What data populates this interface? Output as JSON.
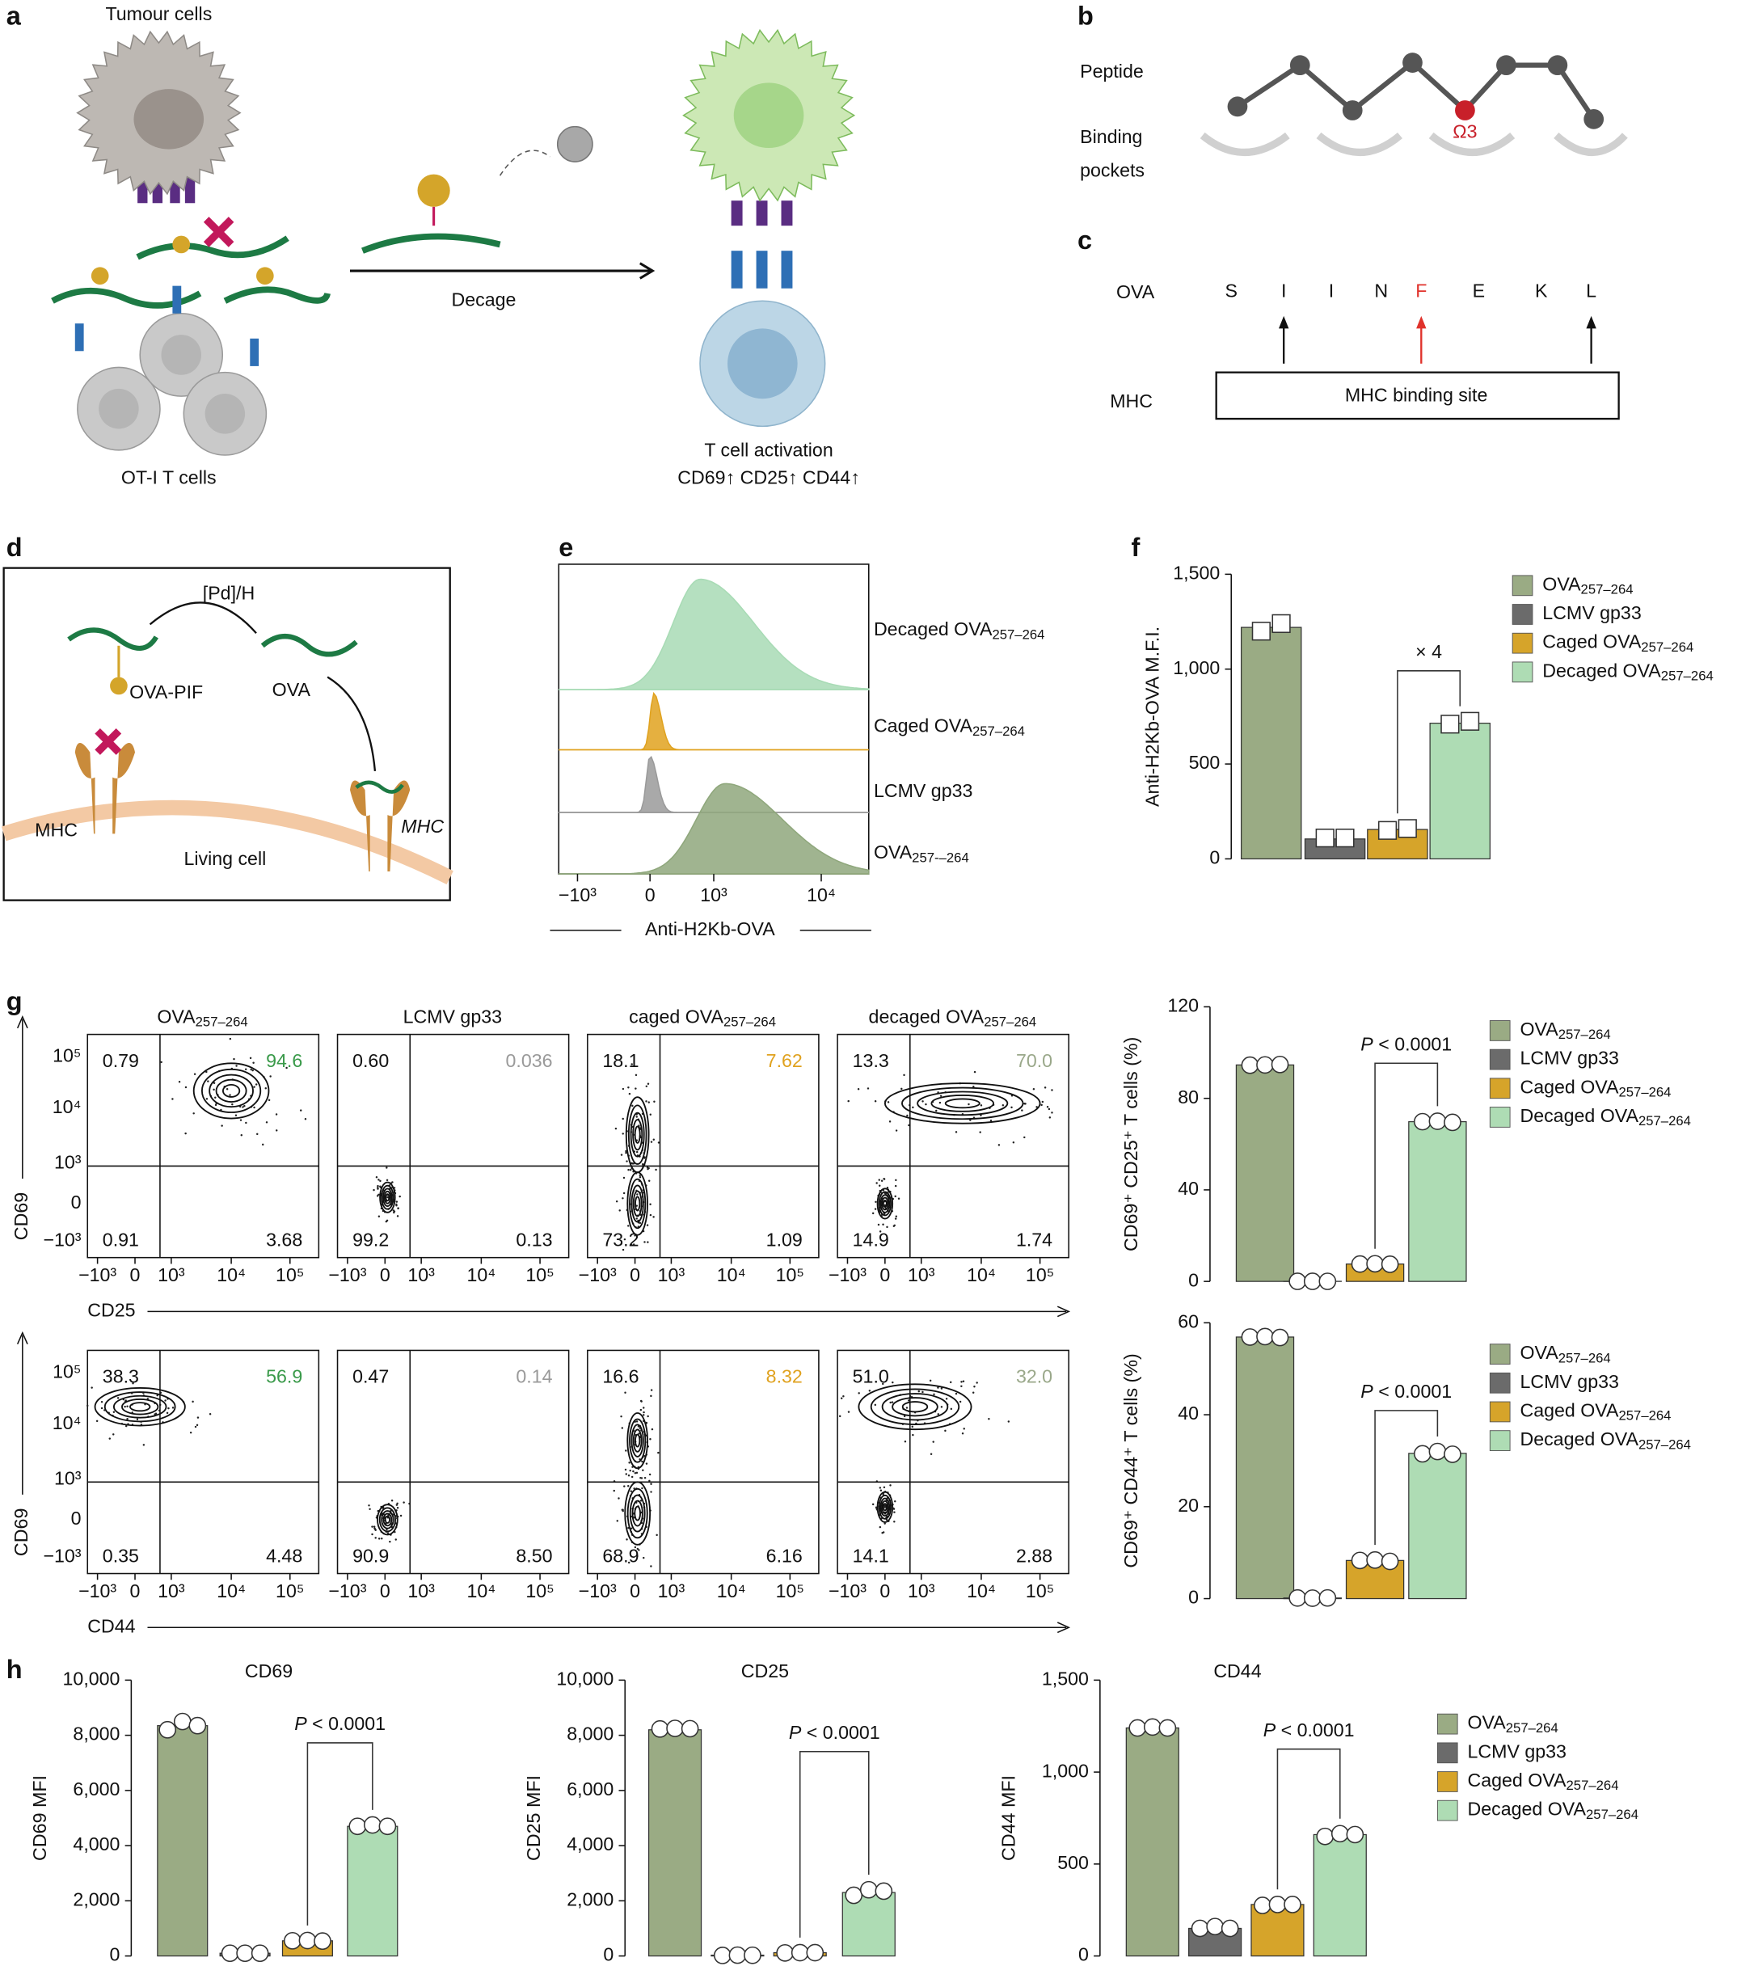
{
  "panel_labels": [
    "a",
    "b",
    "c",
    "d",
    "e",
    "f",
    "g",
    "h"
  ],
  "panel_a": {
    "tumour": "Tumour cells",
    "tcells": "OT-I T cells",
    "decage": "Decage",
    "activation": "T cell activation",
    "markers": "CD69↑ CD25↑ CD44↑"
  },
  "panel_b": {
    "peptide": "Peptide",
    "binding": [
      "Binding",
      "pockets"
    ],
    "pocket": "Ω3"
  },
  "panel_c": {
    "ova": "OVA",
    "sequence": [
      {
        "letter": "S",
        "color": "#111111"
      },
      {
        "letter": "I",
        "color": "#111111"
      },
      {
        "letter": "I",
        "color": "#111111"
      },
      {
        "letter": "N",
        "color": "#111111"
      },
      {
        "letter": "F",
        "color": "#e0322b"
      },
      {
        "letter": "E",
        "color": "#111111"
      },
      {
        "letter": "K",
        "color": "#111111"
      },
      {
        "letter": "L",
        "color": "#111111"
      }
    ],
    "mhc": "MHC",
    "site": "MHC binding site"
  },
  "panel_d": {
    "catalyst": "[Pd]/H",
    "caged": "OVA-PIF",
    "ova": "OVA",
    "mhc_left": "MHC",
    "mhc_right": "MHC",
    "cell": "Living cell"
  },
  "panel_e": {
    "rows": [
      {
        "name": "Decaged OVA",
        "sub": "257–264",
        "color": "#a8dbb5"
      },
      {
        "name": "Caged OVA",
        "sub": "257–264",
        "color": "#e0a21f"
      },
      {
        "name": "LCMV gp33",
        "color": "#9a9a9a"
      },
      {
        "name": "OVA",
        "sub": "257-–264",
        "color": "#8fa77c"
      }
    ],
    "xticks": [
      "−10³",
      "0",
      "10³",
      "10⁴"
    ],
    "xlabel": "Anti-H2Kb-OVA"
  },
  "flow": {
    "xticks": [
      "−10³",
      "0",
      "10³",
      "10⁴",
      "10⁵"
    ],
    "yticks": [
      "10⁵",
      "10⁴",
      "10³",
      "0",
      "−10³"
    ],
    "rows": [
      {
        "xlabel": "CD25",
        "ylabel": "CD69",
        "plots": [
          {
            "title": "OVA",
            "title_sub": "257–264",
            "quadrants": [
              "0.79",
              "94.6",
              "0.91",
              "3.68"
            ],
            "highlight_color": "#3a9a4a"
          },
          {
            "title": "LCMV gp33",
            "quadrants": [
              "0.60",
              "0.036",
              "99.2",
              "0.13"
            ],
            "highlight_color": "#9a9a9a"
          },
          {
            "title": "caged OVA",
            "title_sub": "257–264",
            "quadrants": [
              "18.1",
              "7.62",
              "73.2",
              "1.09"
            ],
            "highlight_color": "#e0a21f"
          },
          {
            "title": "decaged OVA",
            "title_sub": "257–264",
            "quadrants": [
              "13.3",
              "70.0",
              "14.9",
              "1.74"
            ],
            "highlight_color": "#9aa88a"
          }
        ]
      },
      {
        "xlabel": "CD44",
        "ylabel": "CD69",
        "plots": [
          {
            "quadrants": [
              "38.3",
              "56.9",
              "0.35",
              "4.48"
            ],
            "highlight_color": "#3a9a4a"
          },
          {
            "quadrants": [
              "0.47",
              "0.14",
              "90.9",
              "8.50"
            ],
            "highlight_color": "#9a9a9a"
          },
          {
            "quadrants": [
              "16.6",
              "8.32",
              "68.9",
              "6.16"
            ],
            "highlight_color": "#e0a21f"
          },
          {
            "quadrants": [
              "51.0",
              "32.0",
              "14.1",
              "2.88"
            ],
            "highlight_color": "#9aa88a"
          }
        ]
      }
    ]
  },
  "chart_data": [
    {
      "type": "bar",
      "ylabel": "Anti-H2Kb-OVA M.F.I.",
      "ylim": [
        0,
        1500
      ],
      "yticks": [
        0,
        500,
        {
          "value": 1000,
          "label": "1,000"
        },
        {
          "value": 1500,
          "label": "1,500"
        }
      ],
      "marker": "square",
      "legend": true,
      "annotation": {
        "text": "× 4"
      },
      "series": [
        {
          "name": "OVA",
          "name_sub": "257–264",
          "color": "#9aab84",
          "values": [
            1220
          ],
          "points": [
            1200,
            1240
          ]
        },
        {
          "name": "LCMV gp33",
          "color": "#6b6b6b",
          "values": [
            105
          ],
          "points": [
            110,
            110
          ]
        },
        {
          "name": "Caged OVA",
          "name_sub": "257–264",
          "color": "#d6a42a",
          "values": [
            155
          ],
          "points": [
            150,
            160
          ]
        },
        {
          "name": "Decaged OVA",
          "name_sub": "257–264",
          "color": "#aedcb4",
          "values": [
            715
          ],
          "points": [
            710,
            725
          ]
        }
      ]
    },
    {
      "type": "bar",
      "ylabel": "CD69⁺ CD25⁺ T cells (%)",
      "ylim": [
        0,
        120
      ],
      "yticks": [
        0,
        40,
        80,
        120
      ],
      "marker": "circle",
      "legend": true,
      "annotation": {
        "italic": "P",
        "text": " < 0.0001"
      },
      "series": [
        {
          "name": "OVA",
          "name_sub": "257–264",
          "color": "#9aab84",
          "values": [
            94.6
          ],
          "points": [
            94.5,
            94.6,
            94.8
          ]
        },
        {
          "name": "LCMV gp33",
          "color": "#6b6b6b",
          "values": [
            0.04
          ],
          "points": [
            0.04,
            0.04,
            0.03
          ]
        },
        {
          "name": "Caged OVA",
          "name_sub": "257–264",
          "color": "#d6a42a",
          "values": [
            7.6
          ],
          "points": [
            7.6,
            7.7,
            7.5
          ]
        },
        {
          "name": "Decaged OVA",
          "name_sub": "257–264",
          "color": "#aedcb4",
          "values": [
            69.8
          ],
          "points": [
            69.8,
            70,
            69.5
          ]
        }
      ]
    },
    {
      "type": "bar",
      "ylabel": "CD69⁺ CD44⁺ T cells (%)",
      "ylim": [
        0,
        60
      ],
      "yticks": [
        0,
        20,
        40,
        60
      ],
      "marker": "circle",
      "legend": true,
      "annotation": {
        "italic": "P",
        "text": " < 0.0001"
      },
      "series": [
        {
          "name": "OVA",
          "name_sub": "257–264",
          "color": "#9aab84",
          "values": [
            56.9
          ],
          "points": [
            56.9,
            57,
            56.8
          ]
        },
        {
          "name": "LCMV gp33",
          "color": "#6b6b6b",
          "values": [
            0.14
          ],
          "points": [
            0.14,
            0.1,
            0.15
          ]
        },
        {
          "name": "Caged OVA",
          "name_sub": "257–264",
          "color": "#d6a42a",
          "values": [
            8.3
          ],
          "points": [
            8.3,
            8.4,
            8.1
          ]
        },
        {
          "name": "Decaged OVA",
          "name_sub": "257–264",
          "color": "#aedcb4",
          "values": [
            31.6
          ],
          "points": [
            31.5,
            32,
            31.4
          ]
        }
      ]
    },
    {
      "type": "bar",
      "title": "CD69",
      "ylabel": "CD69 MFI",
      "ylim": [
        0,
        10000
      ],
      "yticks": [
        0,
        {
          "value": 2000,
          "label": "2,000"
        },
        {
          "value": 4000,
          "label": "4,000"
        },
        {
          "value": 6000,
          "label": "6,000"
        },
        {
          "value": 8000,
          "label": "8,000"
        },
        {
          "value": 10000,
          "label": "10,000"
        }
      ],
      "marker": "circle",
      "legend": false,
      "annotation": {
        "italic": "P",
        "text": " < 0.0001"
      },
      "series": [
        {
          "color": "#9aab84",
          "values": [
            8350
          ],
          "points": [
            8200,
            8500,
            8350
          ]
        },
        {
          "color": "#6b6b6b",
          "values": [
            100
          ],
          "points": [
            100,
            100,
            100
          ]
        },
        {
          "color": "#d6a42a",
          "values": [
            550
          ],
          "points": [
            550,
            560,
            540
          ]
        },
        {
          "color": "#aedcb4",
          "values": [
            4700
          ],
          "points": [
            4700,
            4750,
            4700
          ]
        }
      ]
    },
    {
      "type": "bar",
      "title": "CD25",
      "ylabel": "CD25 MFI",
      "ylim": [
        0,
        10000
      ],
      "yticks": [
        0,
        {
          "value": 2000,
          "label": "2,000"
        },
        {
          "value": 4000,
          "label": "4,000"
        },
        {
          "value": 6000,
          "label": "6,000"
        },
        {
          "value": 8000,
          "label": "8,000"
        },
        {
          "value": 10000,
          "label": "10,000"
        }
      ],
      "marker": "circle",
      "legend": false,
      "annotation": {
        "italic": "P",
        "text": " < 0.0001"
      },
      "series": [
        {
          "color": "#9aab84",
          "values": [
            8200
          ],
          "points": [
            8230,
            8250,
            8240
          ]
        },
        {
          "color": "#6b6b6b",
          "values": [
            30
          ],
          "points": [
            20,
            30,
            25
          ]
        },
        {
          "color": "#d6a42a",
          "values": [
            120
          ],
          "points": [
            110,
            120,
            120
          ]
        },
        {
          "color": "#aedcb4",
          "values": [
            2300
          ],
          "points": [
            2200,
            2400,
            2350
          ]
        }
      ]
    },
    {
      "type": "bar",
      "title": "CD44",
      "ylabel": "CD44 MFI",
      "ylim": [
        0,
        1500
      ],
      "yticks": [
        0,
        500,
        {
          "value": 1000,
          "label": "1,000"
        },
        {
          "value": 1500,
          "label": "1,500"
        }
      ],
      "marker": "circle",
      "legend": true,
      "annotation": {
        "italic": "P",
        "text": " < 0.0001"
      },
      "series": [
        {
          "name": "OVA",
          "name_sub": "257–264",
          "color": "#9aab84",
          "values": [
            1240
          ],
          "points": [
            1240,
            1245,
            1240
          ]
        },
        {
          "name": "LCMV gp33",
          "color": "#6b6b6b",
          "values": [
            150
          ],
          "points": [
            150,
            160,
            150
          ]
        },
        {
          "name": "Caged OVA",
          "name_sub": "257–264",
          "color": "#d6a42a",
          "values": [
            280
          ],
          "points": [
            275,
            280,
            280
          ]
        },
        {
          "name": "Decaged OVA",
          "name_sub": "257–264",
          "color": "#aedcb4",
          "values": [
            660
          ],
          "points": [
            650,
            665,
            660
          ]
        }
      ]
    }
  ]
}
